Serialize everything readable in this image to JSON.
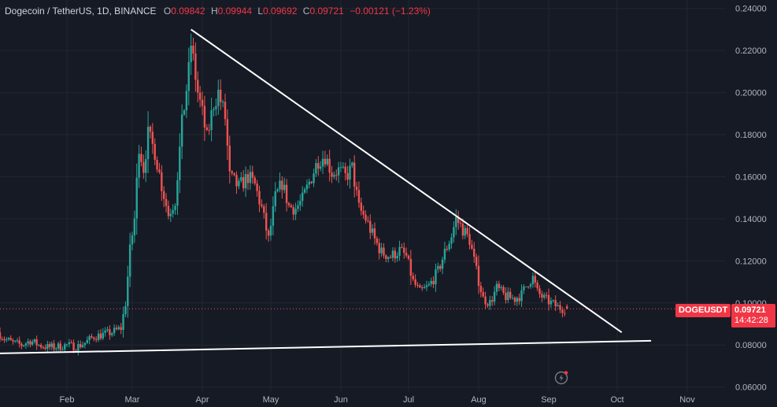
{
  "legend": {
    "title": "Dogecoin / TetherUS, 1D, BINANCE",
    "open_label": "O",
    "open": "0.09842",
    "high_label": "H",
    "high": "0.09944",
    "low_label": "L",
    "low": "0.09692",
    "close_label": "C",
    "close": "0.09721",
    "change": "−0.00121 (−1.23%)"
  },
  "symbol_tag": "DOGEUSDT",
  "last_price": "0.09721",
  "countdown": "14:42:28",
  "replay_icon": "replay-icon",
  "colors": {
    "background": "#161a25",
    "up": "#26a69a",
    "down": "#ef5350",
    "accent": "#f23645",
    "grid": "#222631",
    "text": "#b2b5be",
    "trendline": "#ffffff"
  },
  "chart_data": {
    "type": "candlestick",
    "title": "Dogecoin / TetherUS, 1D, BINANCE",
    "y_axis_side": "right",
    "ylim": [
      0.058,
      0.244
    ],
    "y_ticks": [
      "0.06000",
      "0.08000",
      "0.10000",
      "0.12000",
      "0.14000",
      "0.16000",
      "0.18000",
      "0.20000",
      "0.22000",
      "0.24000"
    ],
    "x_ticks": [
      "Feb",
      "Mar",
      "Apr",
      "May",
      "Jun",
      "Jul",
      "Aug",
      "Sep",
      "Oct",
      "Nov"
    ],
    "x_tick_dates": [
      "2024-02-01",
      "2024-03-01",
      "2024-04-01",
      "2024-05-01",
      "2024-06-01",
      "2024-07-01",
      "2024-08-01",
      "2024-09-01",
      "2024-10-01",
      "2024-11-01"
    ],
    "grid": true,
    "close_path": [
      [
        "2024-01-01",
        0.086
      ],
      [
        "2024-01-04",
        0.083
      ],
      [
        "2024-01-08",
        0.081
      ],
      [
        "2024-01-12",
        0.08
      ],
      [
        "2024-01-16",
        0.082
      ],
      [
        "2024-01-20",
        0.08
      ],
      [
        "2024-01-24",
        0.079
      ],
      [
        "2024-01-28",
        0.079
      ],
      [
        "2024-02-02",
        0.08
      ],
      [
        "2024-02-06",
        0.079
      ],
      [
        "2024-02-10",
        0.081
      ],
      [
        "2024-02-14",
        0.084
      ],
      [
        "2024-02-18",
        0.085
      ],
      [
        "2024-02-22",
        0.086
      ],
      [
        "2024-02-26",
        0.088
      ],
      [
        "2024-02-28",
        0.1
      ],
      [
        "2024-03-01",
        0.125
      ],
      [
        "2024-03-03",
        0.14
      ],
      [
        "2024-03-05",
        0.175
      ],
      [
        "2024-03-07",
        0.164
      ],
      [
        "2024-03-09",
        0.18
      ],
      [
        "2024-03-12",
        0.172
      ],
      [
        "2024-03-15",
        0.156
      ],
      [
        "2024-03-18",
        0.142
      ],
      [
        "2024-03-21",
        0.149
      ],
      [
        "2024-03-24",
        0.185
      ],
      [
        "2024-03-27",
        0.21
      ],
      [
        "2024-03-28",
        0.223
      ],
      [
        "2024-03-31",
        0.2
      ],
      [
        "2024-04-02",
        0.19
      ],
      [
        "2024-04-04",
        0.178
      ],
      [
        "2024-04-07",
        0.195
      ],
      [
        "2024-04-09",
        0.2
      ],
      [
        "2024-04-12",
        0.188
      ],
      [
        "2024-04-14",
        0.16
      ],
      [
        "2024-04-18",
        0.155
      ],
      [
        "2024-04-22",
        0.16
      ],
      [
        "2024-04-25",
        0.156
      ],
      [
        "2024-04-28",
        0.145
      ],
      [
        "2024-05-01",
        0.13
      ],
      [
        "2024-05-04",
        0.15
      ],
      [
        "2024-05-07",
        0.157
      ],
      [
        "2024-05-10",
        0.146
      ],
      [
        "2024-05-13",
        0.145
      ],
      [
        "2024-05-16",
        0.149
      ],
      [
        "2024-05-20",
        0.16
      ],
      [
        "2024-05-23",
        0.168
      ],
      [
        "2024-05-26",
        0.17
      ],
      [
        "2024-05-29",
        0.162
      ],
      [
        "2024-06-01",
        0.163
      ],
      [
        "2024-06-04",
        0.16
      ],
      [
        "2024-06-07",
        0.164
      ],
      [
        "2024-06-10",
        0.145
      ],
      [
        "2024-06-13",
        0.14
      ],
      [
        "2024-06-17",
        0.13
      ],
      [
        "2024-06-20",
        0.124
      ],
      [
        "2024-06-24",
        0.122
      ],
      [
        "2024-06-28",
        0.125
      ],
      [
        "2024-07-01",
        0.122
      ],
      [
        "2024-07-04",
        0.11
      ],
      [
        "2024-07-07",
        0.105
      ],
      [
        "2024-07-11",
        0.108
      ],
      [
        "2024-07-15",
        0.115
      ],
      [
        "2024-07-18",
        0.124
      ],
      [
        "2024-07-21",
        0.132
      ],
      [
        "2024-07-23",
        0.14
      ],
      [
        "2024-07-26",
        0.135
      ],
      [
        "2024-07-29",
        0.13
      ],
      [
        "2024-08-01",
        0.115
      ],
      [
        "2024-08-04",
        0.102
      ],
      [
        "2024-08-07",
        0.1
      ],
      [
        "2024-08-10",
        0.107
      ],
      [
        "2024-08-14",
        0.103
      ],
      [
        "2024-08-18",
        0.102
      ],
      [
        "2024-08-21",
        0.104
      ],
      [
        "2024-08-24",
        0.11
      ],
      [
        "2024-08-26",
        0.112
      ],
      [
        "2024-08-28",
        0.105
      ],
      [
        "2024-08-31",
        0.102
      ],
      [
        "2024-09-03",
        0.1
      ],
      [
        "2024-09-06",
        0.098
      ],
      [
        "2024-09-09",
        0.0972
      ]
    ],
    "last": {
      "date": "2024-09-09",
      "open": 0.09842,
      "high": 0.09944,
      "low": 0.09692,
      "close": 0.09721
    },
    "trendlines": [
      {
        "from": [
          "2024-03-27",
          0.23
        ],
        "to": [
          "2024-10-03",
          0.086
        ]
      },
      {
        "from": [
          "2024-01-01",
          0.076
        ],
        "to": [
          "2024-10-16",
          0.082
        ]
      }
    ],
    "last_price_line": 0.09721
  }
}
